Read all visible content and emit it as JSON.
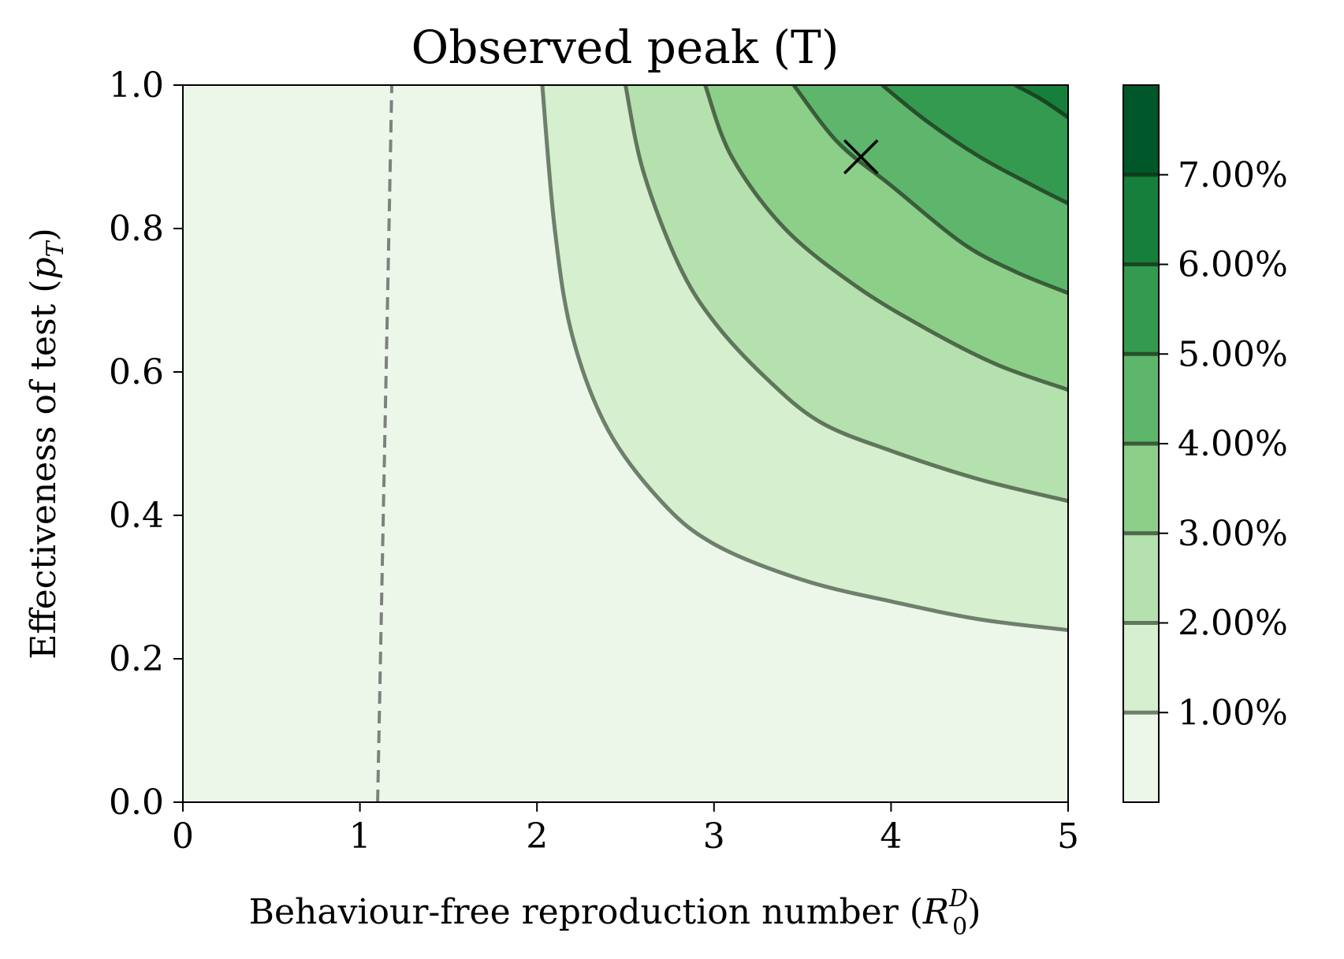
{
  "chart_data": {
    "type": "contour",
    "title": "Observed peak (T)",
    "xlabel": "Behaviour-free reproduction number (",
    "xlabel_symbol": "R",
    "xlabel_sup": "D",
    "xlabel_sub": "0",
    "xlabel_close": ")",
    "ylabel": "Effectiveness of test (",
    "ylabel_symbol": "p",
    "ylabel_sub": "T",
    "ylabel_close": ")",
    "xlim": [
      0,
      5
    ],
    "ylim": [
      0,
      1
    ],
    "xticks": [
      0,
      1,
      2,
      3,
      4,
      5
    ],
    "xtick_labels": [
      "0",
      "1",
      "2",
      "3",
      "4",
      "5"
    ],
    "yticks": [
      0,
      0.2,
      0.4,
      0.6,
      0.8,
      1.0
    ],
    "ytick_labels": [
      "0.0",
      "0.2",
      "0.4",
      "0.6",
      "0.8",
      "1.0"
    ],
    "contour_levels": [
      {
        "level": 0.01,
        "label": "1.00%",
        "fill_above": "#d5efcf",
        "line": "#5b6b58"
      },
      {
        "level": 0.02,
        "label": "2.00%",
        "fill_above": "#b4e1ad",
        "line": "#4f624b"
      },
      {
        "level": 0.03,
        "label": "3.00%",
        "fill_above": "#8ccf88",
        "line": "#3f553c"
      },
      {
        "level": 0.04,
        "label": "4.00%",
        "fill_above": "#5db66b",
        "line": "#2f4a2f"
      },
      {
        "level": 0.05,
        "label": "5.00%",
        "fill_above": "#339a50",
        "line": "#214122"
      },
      {
        "level": 0.06,
        "label": "6.00%",
        "fill_above": "#157f3b",
        "line": "#173a1c"
      },
      {
        "level": 0.07,
        "label": "7.00%",
        "fill_above": "#00582a",
        "line": "#103518"
      }
    ],
    "base_fill": "#ecf7e9",
    "colorbar_range": [
      0,
      0.08
    ],
    "colorbar_ticks": [
      "1.00%",
      "2.00%",
      "3.00%",
      "4.00%",
      "5.00%",
      "6.00%",
      "7.00%"
    ],
    "threshold_line": {
      "style": "dashed",
      "color": "#808080",
      "points": [
        [
          1.1,
          0.0
        ],
        [
          1.18,
          1.0
        ]
      ]
    },
    "marker": {
      "symbol": "x",
      "x": 3.83,
      "y": 0.9
    },
    "contour_lines": [
      {
        "level": 0.01,
        "points": [
          [
            2.03,
            1.0
          ],
          [
            2.1,
            0.8
          ],
          [
            2.2,
            0.65
          ],
          [
            2.4,
            0.52
          ],
          [
            2.7,
            0.42
          ],
          [
            3.0,
            0.36
          ],
          [
            3.5,
            0.31
          ],
          [
            4.0,
            0.28
          ],
          [
            4.5,
            0.255
          ],
          [
            5.0,
            0.24
          ]
        ]
      },
      {
        "level": 0.02,
        "points": [
          [
            2.5,
            1.0
          ],
          [
            2.6,
            0.88
          ],
          [
            2.8,
            0.75
          ],
          [
            3.0,
            0.67
          ],
          [
            3.3,
            0.59
          ],
          [
            3.6,
            0.53
          ],
          [
            4.0,
            0.49
          ],
          [
            4.5,
            0.45
          ],
          [
            5.0,
            0.42
          ]
        ]
      },
      {
        "level": 0.03,
        "points": [
          [
            2.95,
            1.0
          ],
          [
            3.1,
            0.9
          ],
          [
            3.4,
            0.8
          ],
          [
            3.8,
            0.72
          ],
          [
            4.2,
            0.66
          ],
          [
            4.6,
            0.61
          ],
          [
            5.0,
            0.575
          ]
        ]
      },
      {
        "level": 0.04,
        "points": [
          [
            3.45,
            1.0
          ],
          [
            3.7,
            0.92
          ],
          [
            4.0,
            0.86
          ],
          [
            4.4,
            0.78
          ],
          [
            4.7,
            0.74
          ],
          [
            5.0,
            0.71
          ]
        ]
      },
      {
        "level": 0.05,
        "points": [
          [
            3.95,
            1.0
          ],
          [
            4.2,
            0.95
          ],
          [
            4.5,
            0.9
          ],
          [
            4.8,
            0.86
          ],
          [
            5.0,
            0.835
          ]
        ]
      },
      {
        "level": 0.06,
        "points": [
          [
            4.7,
            1.0
          ],
          [
            4.85,
            0.98
          ],
          [
            5.0,
            0.955
          ]
        ]
      }
    ]
  }
}
